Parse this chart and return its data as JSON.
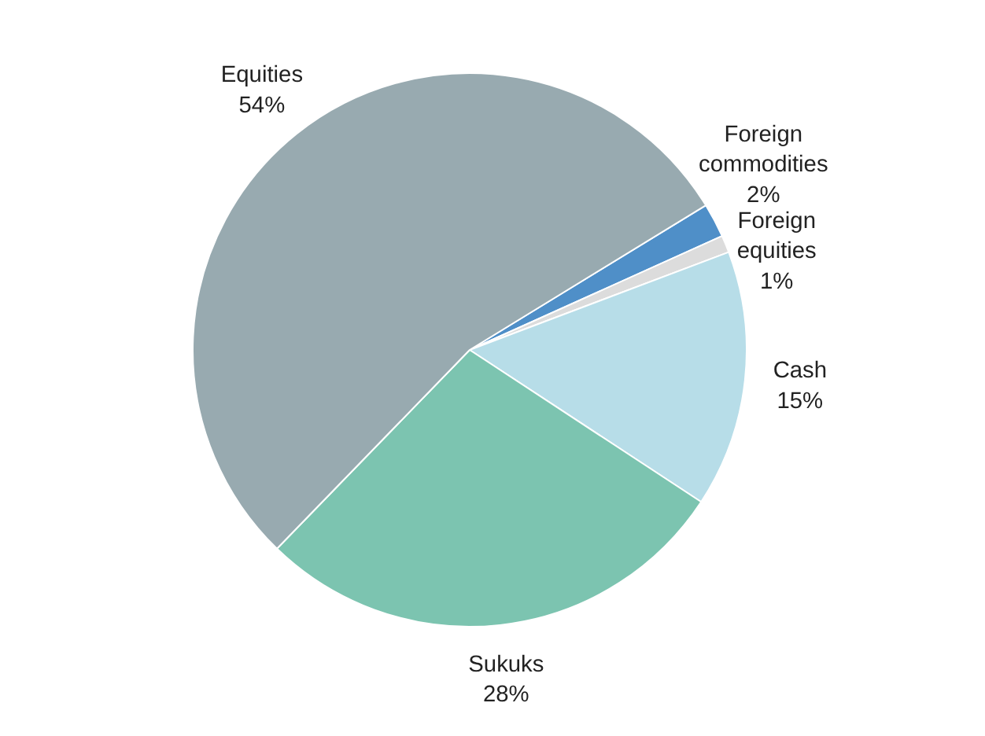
{
  "chart_data": {
    "type": "pie",
    "categories": [
      "Foreign commodities",
      "Foreign equities",
      "Cash",
      "Sukuks",
      "Equities"
    ],
    "values": [
      2,
      1,
      15,
      28,
      54
    ],
    "colors": [
      "#4f8fc8",
      "#dcdcdc",
      "#b7dde8",
      "#7cc4b0",
      "#98aab0"
    ],
    "value_labels": [
      "2%",
      "1%",
      "15%",
      "28%",
      "54%"
    ]
  }
}
